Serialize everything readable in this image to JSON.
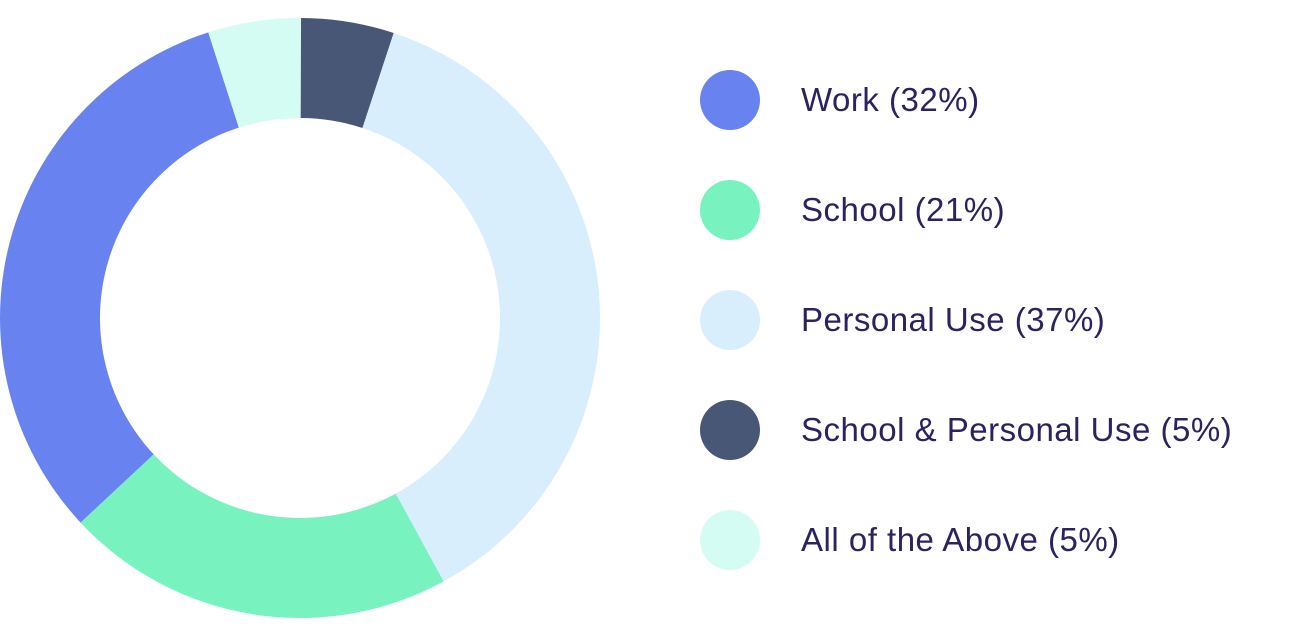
{
  "chart_data": {
    "type": "pie",
    "variant": "donut",
    "title": "",
    "legend_position": "right",
    "slices": [
      {
        "label": "Work (32%)",
        "name": "Work",
        "value": 32,
        "color": "#6883f0"
      },
      {
        "label": "School (21%)",
        "name": "School",
        "value": 21,
        "color": "#78f2bf"
      },
      {
        "label": "Personal Use (37%)",
        "name": "Personal Use",
        "value": 37,
        "color": "#d9eefc"
      },
      {
        "label": "School & Personal Use (5%)",
        "name": "School & Personal Use",
        "value": 5,
        "color": "#475775"
      },
      {
        "label": "All of the Above (5%)",
        "name": "All of the Above",
        "value": 5,
        "color": "#d4fcf2"
      }
    ],
    "drawing_order": [
      "Work",
      "All of the Above",
      "School & Personal Use",
      "Personal Use",
      "School"
    ]
  },
  "colors": {
    "legend_text": "#2b2260"
  }
}
